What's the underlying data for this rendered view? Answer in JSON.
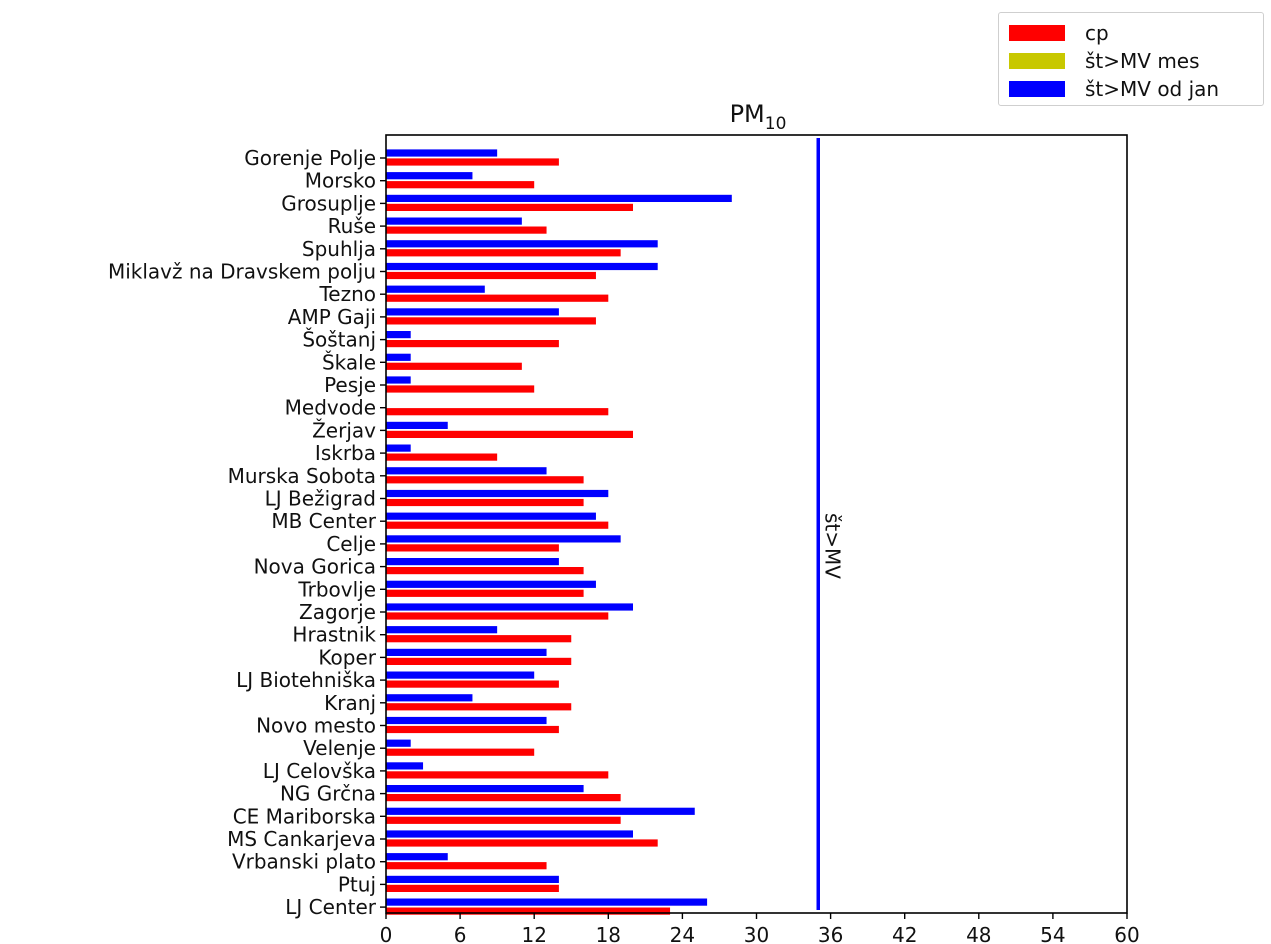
{
  "chart_data": {
    "type": "bar",
    "orientation": "horizontal",
    "title": "PM",
    "title_subscript": "10",
    "xlim": [
      0,
      60
    ],
    "xticks": [
      0,
      6,
      12,
      18,
      24,
      30,
      36,
      42,
      48,
      54,
      60
    ],
    "grid": false,
    "legend_position": "top-right",
    "categories": [
      "Gorenje Polje",
      "Morsko",
      "Grosuplje",
      "Ruše",
      "Spuhlja",
      "Miklavž na Dravskem polju",
      "Tezno",
      "AMP Gaji",
      "Šoštanj",
      "Škale",
      "Pesje",
      "Medvode",
      "Žerjav",
      "Iskrba",
      "Murska Sobota",
      "LJ Bežigrad",
      "MB Center",
      "Celje",
      "Nova Gorica",
      "Trbovlje",
      "Zagorje",
      "Hrastnik",
      "Koper",
      "LJ Biotehniška",
      "Kranj",
      "Novo mesto",
      "Velenje",
      "LJ Celovška",
      "NG Grčna",
      "CE Mariborska",
      "MS Cankarjeva",
      "Vrbanski plato",
      "Ptuj",
      "LJ Center"
    ],
    "series": [
      {
        "name": "cp",
        "color": "#ff0000",
        "values": [
          14,
          12,
          20,
          13,
          19,
          17,
          18,
          17,
          14,
          11,
          12,
          18,
          20,
          9,
          16,
          16,
          18,
          14,
          16,
          16,
          18,
          15,
          15,
          14,
          15,
          14,
          12,
          18,
          19,
          19,
          22,
          13,
          14,
          23
        ]
      },
      {
        "name": "št>MV mes",
        "color": "#c8c800",
        "values": [
          0,
          0,
          0,
          0,
          0,
          0,
          0,
          0,
          0,
          0,
          0,
          0,
          0,
          0,
          0,
          0,
          0,
          0,
          0,
          0,
          0,
          0,
          0,
          0,
          0,
          0,
          0,
          0,
          0,
          0,
          0,
          0,
          0,
          0
        ]
      },
      {
        "name": "št>MV od jan",
        "color": "#0000ff",
        "values": [
          9,
          7,
          28,
          11,
          22,
          22,
          8,
          14,
          2,
          2,
          2,
          0,
          5,
          2,
          13,
          18,
          17,
          19,
          14,
          17,
          20,
          9,
          13,
          12,
          7,
          13,
          2,
          3,
          16,
          25,
          20,
          5,
          14,
          26
        ]
      }
    ],
    "reference_line": {
      "x": 35,
      "label": "št>MV",
      "color": "#0000ff"
    }
  }
}
